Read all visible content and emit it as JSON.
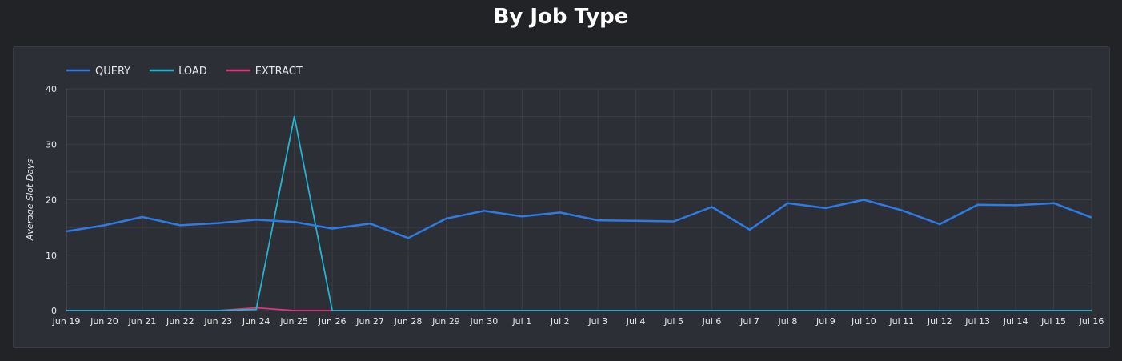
{
  "page": {
    "title": "By Job Type"
  },
  "chart_data": {
    "type": "line",
    "title": "By Job Type",
    "xlabel": "",
    "ylabel": "Average Slot Days",
    "ylim": [
      0,
      40
    ],
    "yticks": [
      0,
      10,
      20,
      30,
      40
    ],
    "grid": true,
    "legend_position": "top-left",
    "x": [
      "Jun 19",
      "Jun 20",
      "Jun 21",
      "Jun 22",
      "Jun 23",
      "Jun 24",
      "Jun 25",
      "Jun 26",
      "Jun 27",
      "Jun 28",
      "Jun 29",
      "Jun 30",
      "Jul 1",
      "Jul 2",
      "Jul 3",
      "Jul 4",
      "Jul 5",
      "Jul 6",
      "Jul 7",
      "Jul 8",
      "Jul 9",
      "Jul 10",
      "Jul 11",
      "Jul 12",
      "Jul 13",
      "Jul 14",
      "Jul 15",
      "Jul 16"
    ],
    "series": [
      {
        "name": "QUERY",
        "color": "#2f7be6",
        "values": [
          14.3,
          15.4,
          16.9,
          15.4,
          15.8,
          16.4,
          16.0,
          14.8,
          15.7,
          13.1,
          16.6,
          18.0,
          17.0,
          17.7,
          16.3,
          16.2,
          16.1,
          18.7,
          14.6,
          19.4,
          18.5,
          20.0,
          18.1,
          15.6,
          19.1,
          19.0,
          19.4,
          16.8
        ]
      },
      {
        "name": "LOAD",
        "color": "#26b3cf",
        "values": [
          0,
          0,
          0,
          0,
          0,
          0.2,
          35,
          0,
          0,
          0,
          0,
          0,
          0,
          0,
          0,
          0,
          0,
          0,
          0,
          0,
          0,
          0,
          0,
          0,
          0,
          0,
          0,
          0
        ]
      },
      {
        "name": "EXTRACT",
        "color": "#e0357f",
        "values": [
          0,
          0,
          0,
          0,
          0,
          0.5,
          0,
          0,
          0,
          0,
          0,
          0,
          0,
          0,
          0,
          0,
          0,
          0,
          0,
          0,
          0,
          0,
          0,
          0,
          0,
          0,
          0,
          0
        ]
      }
    ]
  }
}
